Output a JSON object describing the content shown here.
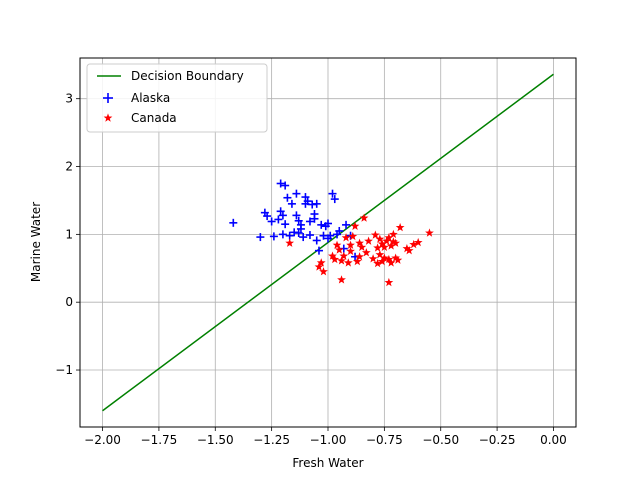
{
  "chart_data": {
    "type": "scatter",
    "xlabel": "Fresh Water",
    "ylabel": "Marine Water",
    "xlim": [
      -2.1,
      0.1
    ],
    "ylim": [
      -1.84,
      3.6
    ],
    "x_ticks": [
      -2.0,
      -1.75,
      -1.5,
      -1.25,
      -1.0,
      -0.75,
      -0.5,
      -0.25,
      0.0
    ],
    "x_tick_labels": [
      "−2.00",
      "−1.75",
      "−1.50",
      "−1.25",
      "−1.00",
      "−0.75",
      "−0.50",
      "−0.25",
      "0.00"
    ],
    "y_ticks": [
      -1,
      0,
      1,
      2,
      3
    ],
    "y_tick_labels": [
      "−1",
      "0",
      "1",
      "2",
      "3"
    ],
    "grid": true,
    "legend_position": "top-left",
    "series": [
      {
        "name": "Decision Boundary",
        "kind": "line",
        "color": "#008000",
        "x": [
          -2.0,
          0.0
        ],
        "y": [
          -1.6,
          3.36
        ]
      },
      {
        "name": "Alaska",
        "kind": "scatter",
        "marker": "plus",
        "color": "#0000ff",
        "x": [
          -1.42,
          -1.3,
          -1.28,
          -1.27,
          -1.25,
          -1.24,
          -1.22,
          -1.21,
          -1.21,
          -1.2,
          -1.2,
          -1.19,
          -1.19,
          -1.18,
          -1.17,
          -1.16,
          -1.15,
          -1.14,
          -1.14,
          -1.13,
          -1.13,
          -1.12,
          -1.12,
          -1.11,
          -1.1,
          -1.1,
          -1.09,
          -1.08,
          -1.08,
          -1.07,
          -1.06,
          -1.06,
          -1.05,
          -1.05,
          -1.04,
          -1.03,
          -1.02,
          -1.01,
          -1.0,
          -1.0,
          -0.99,
          -0.98,
          -0.97,
          -0.96,
          -0.95,
          -0.93,
          -0.92,
          -0.9,
          -0.88
        ],
        "y": [
          1.17,
          0.96,
          1.32,
          1.27,
          1.19,
          0.97,
          1.22,
          1.34,
          1.75,
          1.28,
          1.0,
          1.72,
          1.15,
          1.54,
          0.98,
          1.45,
          1.03,
          1.6,
          1.28,
          1.2,
          1.02,
          1.14,
          1.08,
          0.96,
          1.55,
          1.45,
          1.49,
          1.19,
          0.99,
          1.44,
          1.3,
          1.23,
          0.91,
          1.45,
          0.76,
          1.14,
          0.98,
          1.12,
          0.94,
          1.16,
          0.98,
          1.6,
          1.52,
          1.0,
          1.05,
          0.79,
          1.14,
          0.98,
          0.67
        ]
      },
      {
        "name": "Canada",
        "kind": "scatter",
        "marker": "star",
        "color": "#ff0000",
        "x": [
          -1.17,
          -1.04,
          -1.03,
          -1.02,
          -0.98,
          -0.97,
          -0.96,
          -0.95,
          -0.94,
          -0.94,
          -0.93,
          -0.92,
          -0.91,
          -0.9,
          -0.9,
          -0.89,
          -0.88,
          -0.87,
          -0.86,
          -0.86,
          -0.85,
          -0.84,
          -0.83,
          -0.82,
          -0.8,
          -0.79,
          -0.78,
          -0.78,
          -0.77,
          -0.77,
          -0.76,
          -0.76,
          -0.75,
          -0.75,
          -0.74,
          -0.73,
          -0.73,
          -0.72,
          -0.72,
          -0.71,
          -0.71,
          -0.7,
          -0.7,
          -0.69,
          -0.68,
          -0.65,
          -0.64,
          -0.62,
          -0.6,
          -0.55,
          -0.73
        ],
        "y": [
          0.87,
          0.52,
          0.58,
          0.45,
          0.68,
          0.63,
          0.84,
          0.77,
          0.33,
          0.61,
          0.68,
          0.95,
          0.58,
          0.84,
          0.75,
          0.97,
          1.12,
          0.6,
          0.87,
          0.67,
          0.81,
          1.24,
          0.73,
          0.9,
          0.64,
          0.99,
          0.8,
          0.57,
          0.93,
          0.7,
          0.86,
          0.6,
          0.81,
          0.65,
          0.9,
          0.63,
          0.95,
          0.83,
          0.58,
          1.0,
          0.89,
          0.65,
          0.87,
          0.62,
          1.1,
          0.79,
          0.76,
          0.85,
          0.88,
          1.02,
          0.29
        ]
      }
    ]
  }
}
